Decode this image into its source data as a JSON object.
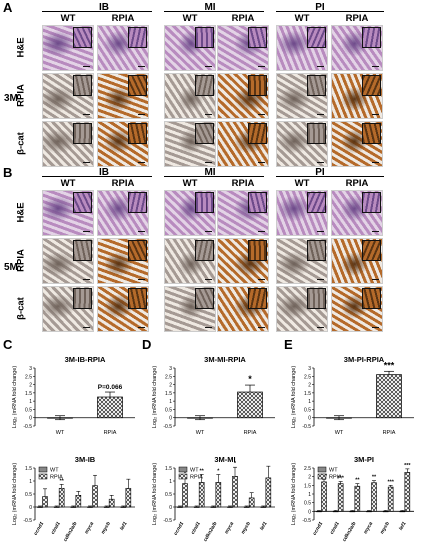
{
  "panelA": {
    "letter": "A",
    "groups": [
      "IB",
      "MI",
      "PI"
    ],
    "columns": [
      "WT",
      "RPIA",
      "WT",
      "RPIA",
      "WT",
      "RPIA"
    ],
    "rows": [
      "H&E",
      "RPIA",
      "β-cat"
    ],
    "side_label": "3M"
  },
  "panelB": {
    "letter": "B",
    "groups": [
      "IB",
      "MI",
      "PI"
    ],
    "columns": [
      "WT",
      "RPIA",
      "WT",
      "RPIA",
      "WT",
      "RPIA"
    ],
    "rows": [
      "H&E",
      "RPIA",
      "β-cat"
    ],
    "side_label": "5M"
  },
  "colors": {
    "he_bg": "#e3d3e6",
    "he_tissue": "#b88bbf",
    "he_dark": "#6d4a8a",
    "ihc_bg": "#efe9e2",
    "ihc_wt": "#a59a94",
    "ihc_rpia": "#b56a2a",
    "ihc_dark": "#5a3413"
  },
  "chart_data": [
    {
      "type": "bar",
      "letter": "C",
      "title": "3M-IB-RPIA",
      "categories": [
        "WT",
        "RPIA"
      ],
      "values": [
        0,
        1.25
      ],
      "errors": [
        0.12,
        0.3
      ],
      "ylabel": "Log₂ (mRNA fold change)",
      "ylim": [
        -0.5,
        3
      ],
      "yticks": [
        "-0.5",
        "0",
        "0.5",
        "1",
        "1.5",
        "2",
        "2.5",
        "3"
      ],
      "annotation": "P=0.066"
    },
    {
      "type": "bar",
      "letter": "D",
      "title": "3M-MI-RPIA",
      "categories": [
        "WT",
        "RPIA"
      ],
      "values": [
        0,
        1.55
      ],
      "errors": [
        0.12,
        0.42
      ],
      "ylabel": "Log₂ (mRNA fold change)",
      "ylim": [
        -0.5,
        3
      ],
      "yticks": [
        "-0.5",
        "0",
        "0.5",
        "1",
        "1.5",
        "2",
        "2.5",
        "3"
      ],
      "annotation": "*"
    },
    {
      "type": "bar",
      "letter": "E",
      "title": "3M-PI-RPIA",
      "categories": [
        "WT",
        "RPIA"
      ],
      "values": [
        0,
        2.6
      ],
      "errors": [
        0.12,
        0.2
      ],
      "ylabel": "Log₂ (mRNA fold change)",
      "ylim": [
        -0.5,
        3
      ],
      "yticks": [
        "-0.5",
        "0",
        "0.5",
        "1",
        "1.5",
        "2",
        "2.5",
        "3"
      ],
      "annotation": "***"
    },
    {
      "type": "bar",
      "title": "3M-IB",
      "categories": [
        "ccnd1",
        "ctnd1",
        "cdkn2a/b",
        "myca",
        "mycb",
        "lef1"
      ],
      "series": [
        {
          "name": "WT",
          "values": [
            0,
            0,
            0,
            0,
            0,
            0
          ],
          "errors": [
            0.04,
            0.04,
            0.04,
            0.04,
            0.04,
            0.04
          ]
        },
        {
          "name": "RPIA",
          "values": [
            0.4,
            0.72,
            0.45,
            0.82,
            0.3,
            0.72
          ],
          "errors": [
            0.3,
            0.15,
            0.15,
            0.4,
            0.15,
            0.35
          ]
        }
      ],
      "annotations": [
        "",
        "**",
        "",
        "",
        "",
        ""
      ],
      "ylabel": "Log₂ (mRNA fold change)",
      "ylim": [
        -0.5,
        1.5
      ],
      "yticks": [
        "-0.5",
        "0",
        "0.5",
        "1",
        "1.5"
      ],
      "legend": "top-left"
    },
    {
      "type": "bar",
      "title": "3M-MI",
      "categories": [
        "ccnd1",
        "ctnd1",
        "cdkn2a/b",
        "myca",
        "mycb",
        "lef1"
      ],
      "series": [
        {
          "name": "WT",
          "values": [
            0,
            0,
            0,
            0,
            0,
            0
          ],
          "errors": [
            0.04,
            0.04,
            0.04,
            0.04,
            0.04,
            0.04
          ]
        },
        {
          "name": "RPIA",
          "values": [
            0.9,
            0.95,
            0.95,
            1.18,
            0.35,
            1.12
          ],
          "errors": [
            0.25,
            0.3,
            0.3,
            0.35,
            0.2,
            0.45
          ]
        }
      ],
      "annotations": [
        "*",
        "**",
        "*",
        "*",
        "",
        ""
      ],
      "ylabel": "Log₂ (mRNA fold change)",
      "ylim": [
        -0.5,
        1.5
      ],
      "yticks": [
        "-0.5",
        "0",
        "0.5",
        "1",
        "1.5"
      ],
      "legend": "top-left"
    },
    {
      "type": "bar",
      "title": "3M-PI",
      "categories": [
        "ccnd1",
        "ctnd1",
        "cdkn2a/b",
        "myca",
        "mycb",
        "lef1"
      ],
      "series": [
        {
          "name": "WT",
          "values": [
            0,
            0,
            0,
            0,
            0,
            0
          ],
          "errors": [
            0.05,
            0.05,
            0.05,
            0.05,
            0.05,
            0.05
          ]
        },
        {
          "name": "RPIA",
          "values": [
            1.7,
            1.6,
            1.45,
            1.65,
            1.4,
            2.25
          ],
          "errors": [
            0.15,
            0.12,
            0.15,
            0.12,
            0.1,
            0.2
          ]
        }
      ],
      "annotations": [
        "***",
        "***",
        "**",
        "**",
        "***",
        "***"
      ],
      "ylabel": "Log₂ (mRNA fold change)",
      "ylim": [
        -0.5,
        2.5
      ],
      "yticks": [
        "-0.5",
        "0",
        "0.5",
        "1",
        "1.5",
        "2",
        "2.5"
      ],
      "legend": "top-left"
    }
  ]
}
